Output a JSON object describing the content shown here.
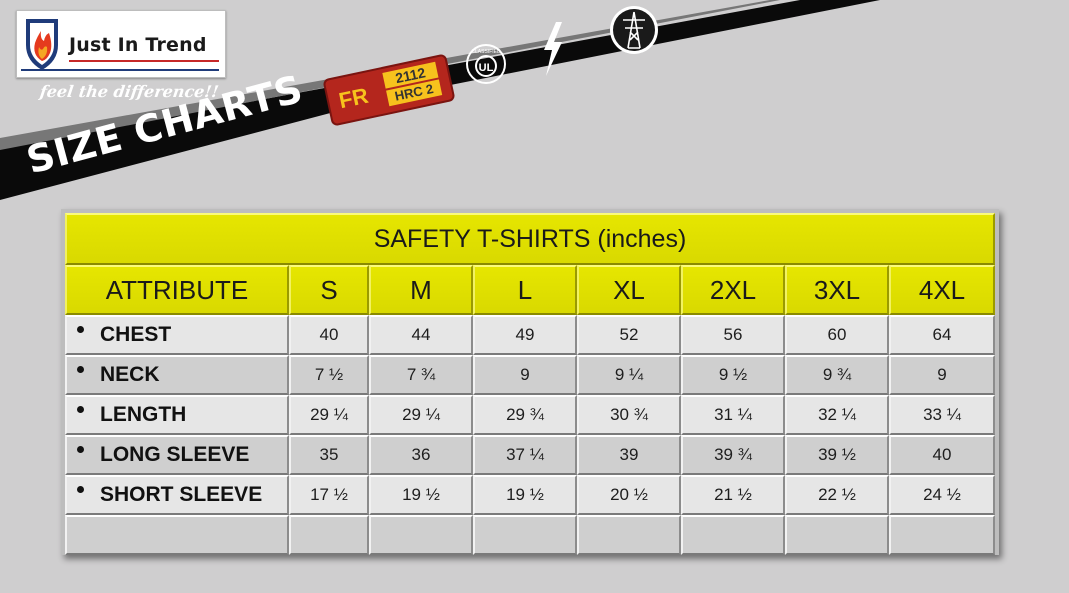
{
  "brand": {
    "name": "Just In Trend",
    "tagline": "feel the difference!!"
  },
  "banner": {
    "title": "SIZE CHARTS",
    "badges": {
      "fr_text": "FR",
      "fr_number": "2112",
      "fr_rating": "HRC 2",
      "ul_text": "UL",
      "ul_label": "CLASSIFIED"
    }
  },
  "colors": {
    "header_yellow": "#e0e000",
    "band_black": "#0a0a0a",
    "background": "#cfcecf",
    "brand_red": "#c62828",
    "brand_blue": "#1f3b7a"
  },
  "table": {
    "title": "SAFETY T-SHIRTS (inches)",
    "headers": [
      "ATTRIBUTE",
      "S",
      "M",
      "L",
      "XL",
      "2XL",
      "3XL",
      "4XL"
    ],
    "rows": [
      {
        "attribute": "CHEST",
        "values": [
          "40",
          "44",
          "49",
          "52",
          "56",
          "60",
          "64"
        ]
      },
      {
        "attribute": "NECK",
        "values": [
          "7 ½",
          "7 ¾",
          "9",
          "9 ¼",
          "9 ½",
          "9 ¾",
          "9"
        ]
      },
      {
        "attribute": "LENGTH",
        "values": [
          "29 ¼",
          "29 ¼",
          "29 ¾",
          "30 ¾",
          "31 ¼",
          "32 ¼",
          "33 ¼"
        ]
      },
      {
        "attribute": "LONG SLEEVE",
        "values": [
          "35",
          "36",
          "37 ¼",
          "39",
          "39 ¾",
          "39 ½",
          "40"
        ]
      },
      {
        "attribute": "SHORT SLEEVE",
        "values": [
          "17 ½",
          "19 ½",
          "19 ½",
          "20 ½",
          "21 ½",
          "22 ½",
          "24 ½"
        ]
      },
      {
        "attribute": "",
        "values": [
          "",
          "",
          "",
          "",
          "",
          "",
          ""
        ]
      }
    ]
  }
}
